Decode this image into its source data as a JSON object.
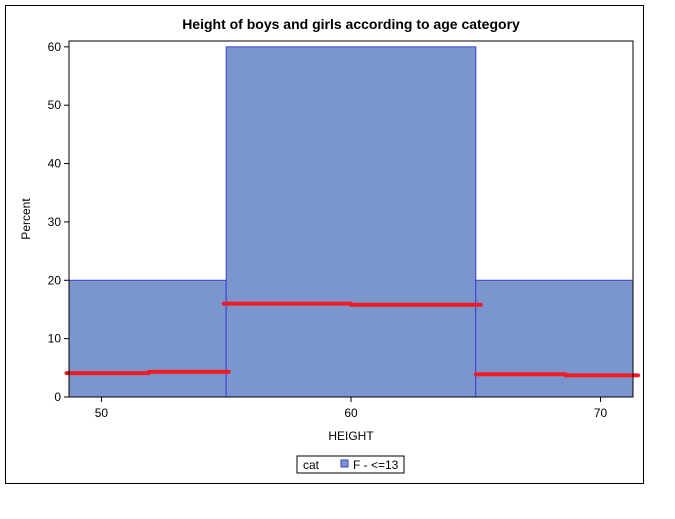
{
  "chart_data": {
    "type": "bar",
    "title": "Height of boys and girls according to age category",
    "xlabel": "HEIGHT",
    "ylabel": "Percent",
    "xlim": [
      48.7,
      71.3
    ],
    "ylim": [
      0,
      61
    ],
    "xticks": [
      50,
      60,
      70
    ],
    "yticks": [
      0,
      10,
      20,
      30,
      40,
      50,
      60
    ],
    "bins": [
      {
        "from": 45,
        "to": 55,
        "value": 20
      },
      {
        "from": 55,
        "to": 65,
        "value": 60
      },
      {
        "from": 65,
        "to": 75,
        "value": 20
      }
    ],
    "overlay_line": {
      "color": "#ee1c25",
      "segments": [
        {
          "x0": 48.6,
          "x1": 51.9,
          "y": 4.1
        },
        {
          "x0": 51.9,
          "x1": 55.1,
          "y": 4.3
        },
        {
          "x0": 54.9,
          "x1": 60.0,
          "y": 16.0
        },
        {
          "x0": 60.0,
          "x1": 65.2,
          "y": 15.8
        },
        {
          "x0": 65.0,
          "x1": 68.6,
          "y": 3.9
        },
        {
          "x0": 68.6,
          "x1": 71.5,
          "y": 3.7
        }
      ]
    },
    "bar_fill": "#7b96cd",
    "bar_edge": "#3a3fd6",
    "grid": false,
    "legend": {
      "title": "cat",
      "entries": [
        "F - <=13"
      ],
      "placement": "bottom"
    }
  }
}
